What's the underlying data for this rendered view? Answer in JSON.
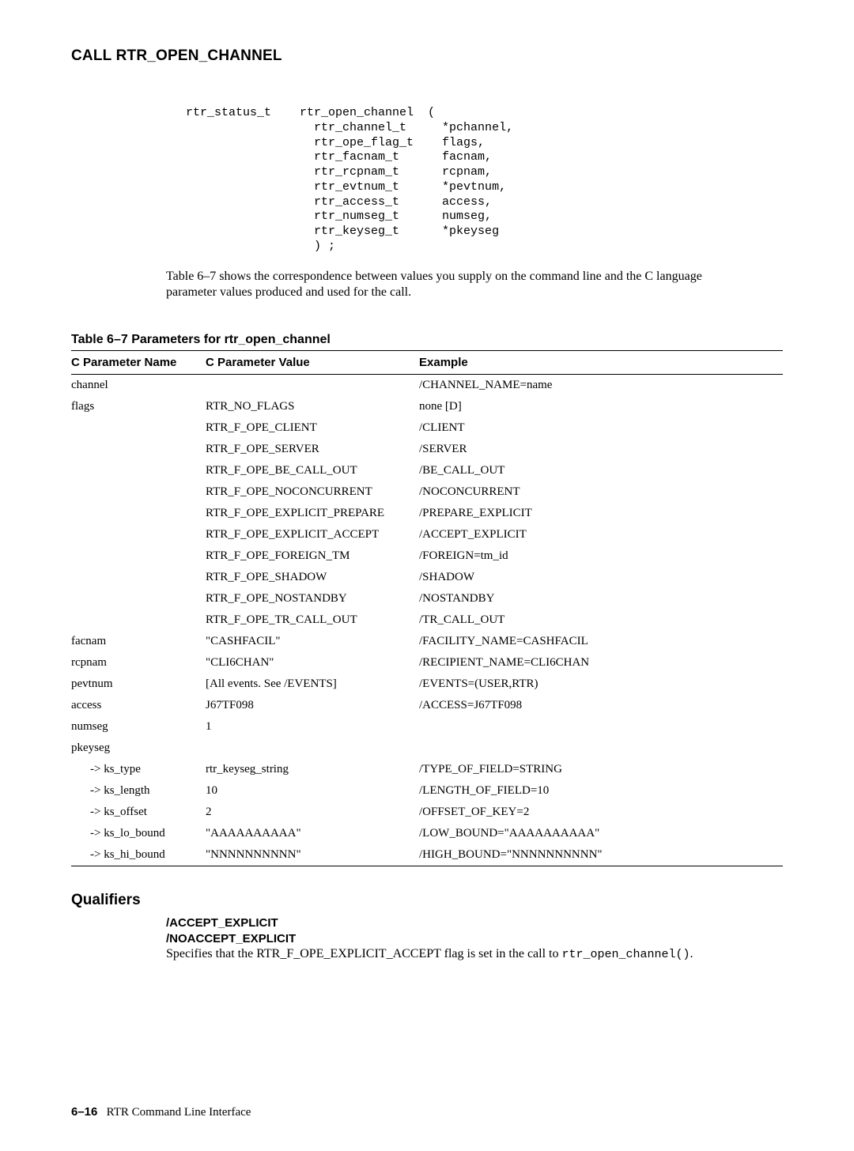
{
  "page_title": "CALL RTR_OPEN_CHANNEL",
  "code_block": "rtr_status_t    rtr_open_channel  (\n                  rtr_channel_t     *pchannel,\n                  rtr_ope_flag_t    flags,\n                  rtr_facnam_t      facnam,\n                  rtr_rcpnam_t      rcpnam,\n                  rtr_evtnum_t      *pevtnum,\n                  rtr_access_t      access,\n                  rtr_numseg_t      numseg,\n                  rtr_keyseg_t      *pkeyseg\n                  ) ;",
  "intro_text": "Table 6–7 shows the correspondence between values you supply on the command line and the C language parameter values produced and used for the call.",
  "table": {
    "caption": "Table 6–7   Parameters for rtr_open_channel",
    "headers": [
      "C Parameter Name",
      "C Parameter Value",
      "Example"
    ],
    "rows": [
      {
        "name": "channel",
        "value": "",
        "example": "/CHANNEL_NAME=name",
        "sep": true
      },
      {
        "name": "flags",
        "value": "RTR_NO_FLAGS",
        "example": "none [D]"
      },
      {
        "name": "",
        "value": "RTR_F_OPE_CLIENT",
        "example": "/CLIENT"
      },
      {
        "name": "",
        "value": "RTR_F_OPE_SERVER",
        "example": "/SERVER"
      },
      {
        "name": "",
        "value": "RTR_F_OPE_BE_CALL_OUT",
        "example": "/BE_CALL_OUT"
      },
      {
        "name": "",
        "value": "RTR_F_OPE_NOCONCURRENT",
        "example": "/NOCONCURRENT"
      },
      {
        "name": "",
        "value": "RTR_F_OPE_EXPLICIT_PREPARE",
        "example": "/PREPARE_EXPLICIT"
      },
      {
        "name": "",
        "value": "RTR_F_OPE_EXPLICIT_ACCEPT",
        "example": "/ACCEPT_EXPLICIT"
      },
      {
        "name": "",
        "value": "RTR_F_OPE_FOREIGN_TM",
        "example": "/FOREIGN=tm_id"
      },
      {
        "name": "",
        "value": "RTR_F_OPE_SHADOW",
        "example": "/SHADOW"
      },
      {
        "name": "",
        "value": "RTR_F_OPE_NOSTANDBY",
        "example": "/NOSTANDBY"
      },
      {
        "name": "",
        "value": "RTR_F_OPE_TR_CALL_OUT",
        "example": "/TR_CALL_OUT"
      },
      {
        "name": "facnam",
        "value": "\"CASHFACIL\"",
        "example": "/FACILITY_NAME=CASHFACIL"
      },
      {
        "name": "rcpnam",
        "value": "\"CLI6CHAN\"",
        "example": "/RECIPIENT_NAME=CLI6CHAN"
      },
      {
        "name": "pevtnum",
        "value": "[All events. See /EVENTS]",
        "example": "/EVENTS=(USER,RTR)"
      },
      {
        "name": "access",
        "value": "J67TF098",
        "example": "/ACCESS=J67TF098"
      },
      {
        "name": "numseg",
        "value": "1",
        "example": ""
      },
      {
        "name": "pkeyseg",
        "value": "",
        "example": ""
      },
      {
        "name": "-> ks_type",
        "value": "rtr_keyseg_string",
        "example": "/TYPE_OF_FIELD=STRING",
        "indent": true
      },
      {
        "name": "-> ks_length",
        "value": "10",
        "example": "/LENGTH_OF_FIELD=10",
        "indent": true
      },
      {
        "name": "-> ks_offset",
        "value": "2",
        "example": "/OFFSET_OF_KEY=2",
        "indent": true
      },
      {
        "name": "-> ks_lo_bound",
        "value": "\"AAAAAAAAAA\"",
        "example": "/LOW_BOUND=\"AAAAAAAAAA\"",
        "indent": true
      },
      {
        "name": "-> ks_hi_bound",
        "value": "\"NNNNNNNNNN\"",
        "example": "/HIGH_BOUND=\"NNNNNNNNNN\"",
        "indent": true
      }
    ]
  },
  "qualifiers": {
    "heading": "Qualifiers",
    "items": [
      {
        "names": [
          "/ACCEPT_EXPLICIT",
          "/NOACCEPT_EXPLICIT"
        ],
        "desc_prefix": "Specifies that the RTR_F_OPE_EXPLICIT_ACCEPT flag is set in the call to ",
        "desc_mono": "rtr_open_channel()",
        "desc_suffix": "."
      }
    ]
  },
  "footer": {
    "page_num": "6–16",
    "label": "RTR Command Line Interface"
  }
}
